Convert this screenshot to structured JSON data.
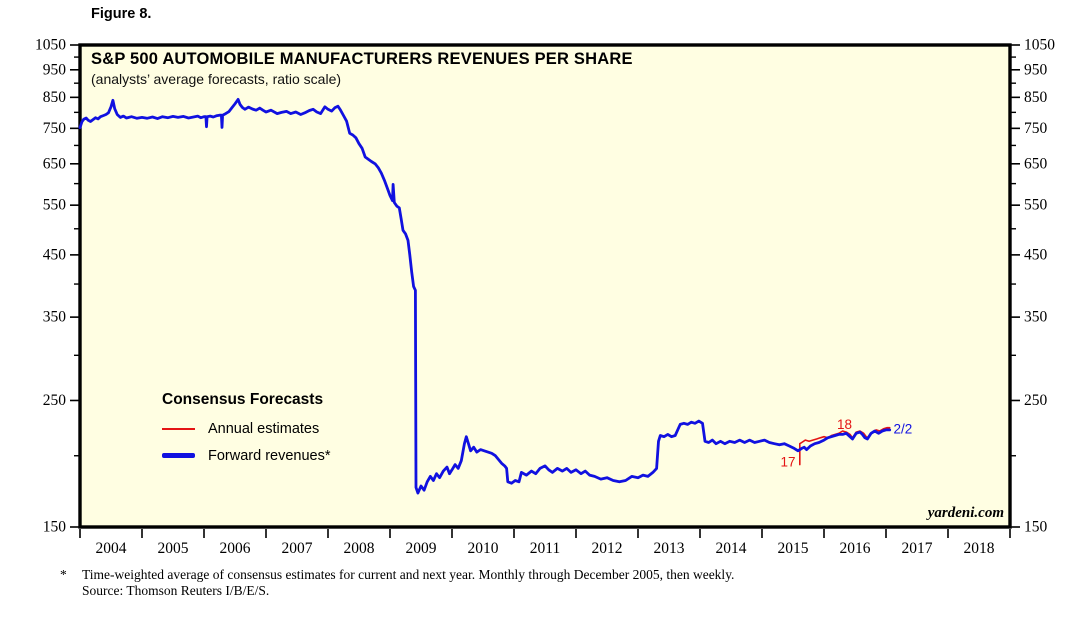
{
  "figure_label": "Figure 8.",
  "chart": {
    "title": "S&P 500 AUTOMOBILE MANUFACTURERS REVENUES PER SHARE",
    "subtitle": "(analysts’ average forecasts, ratio scale)",
    "watermark": "yardeni.com",
    "legend": {
      "heading": "Consensus Forecasts",
      "items": [
        {
          "label": "Annual estimates",
          "color": "#e41414",
          "style": "thin"
        },
        {
          "label": "Forward revenues*",
          "color": "#1111e0",
          "style": "thick"
        }
      ]
    }
  },
  "footnote": {
    "marker": "*",
    "line1": "Time-weighted average of consensus estimates for current and next year. Monthly through December 2005, then weekly.",
    "line2": "Source: Thomson Reuters I/B/E/S."
  },
  "chart_data": {
    "type": "line",
    "title": "S&P 500 AUTOMOBILE MANUFACTURERS REVENUES PER SHARE",
    "subtitle": "(analysts' average forecasts, ratio scale)",
    "grid": false,
    "legend_position": "inside-left-middle",
    "plot_bg": "#fffee2",
    "y_axis": {
      "scale": "log",
      "range": [
        150,
        1050
      ],
      "ticks": [
        150,
        250,
        350,
        450,
        550,
        650,
        750,
        850,
        950,
        1050
      ],
      "minor_ticks": [
        200,
        300,
        400,
        500,
        600,
        700,
        800,
        900,
        1000
      ],
      "sides": [
        "left",
        "right"
      ]
    },
    "x_axis": {
      "range": [
        2004,
        2019
      ],
      "ticks": [
        2004,
        2005,
        2006,
        2007,
        2008,
        2009,
        2010,
        2011,
        2012,
        2013,
        2014,
        2015,
        2016,
        2017,
        2018,
        2019
      ],
      "labels": [
        "2004",
        "2005",
        "2006",
        "2007",
        "2008",
        "2009",
        "2010",
        "2011",
        "2012",
        "2013",
        "2014",
        "2015",
        "2016",
        "2017",
        "2018"
      ]
    },
    "series": [
      {
        "id": "annual-estimates",
        "name": "Annual estimates",
        "color": "#e41414",
        "width": 1.6,
        "points": [
          [
            2015.61,
            193
          ],
          [
            2015.61,
            210
          ],
          [
            2015.64,
            211
          ],
          [
            2015.7,
            213
          ],
          [
            2015.76,
            212
          ],
          [
            2015.82,
            213
          ],
          [
            2015.88,
            214
          ],
          [
            2015.94,
            215
          ],
          [
            2016.0,
            216
          ],
          [
            2016.06,
            215
          ],
          [
            2016.12,
            217
          ],
          [
            2016.18,
            218
          ],
          [
            2016.24,
            219
          ],
          [
            2016.3,
            221
          ],
          [
            2016.36,
            220
          ],
          [
            2016.42,
            218
          ],
          [
            2016.46,
            215
          ],
          [
            2016.52,
            220
          ],
          [
            2016.58,
            221
          ],
          [
            2016.64,
            219
          ],
          [
            2016.68,
            216
          ],
          [
            2016.72,
            215
          ],
          [
            2016.78,
            220
          ],
          [
            2016.84,
            222
          ],
          [
            2016.9,
            221
          ],
          [
            2016.96,
            223
          ],
          [
            2017.02,
            224
          ],
          [
            2017.06,
            224
          ]
        ]
      },
      {
        "id": "forward-revenues",
        "name": "Forward revenues*",
        "color": "#1111e0",
        "width": 2.8,
        "points": [
          [
            2004.0,
            752
          ],
          [
            2004.03,
            770
          ],
          [
            2004.06,
            778
          ],
          [
            2004.1,
            782
          ],
          [
            2004.13,
            775
          ],
          [
            2004.17,
            771
          ],
          [
            2004.21,
            777
          ],
          [
            2004.25,
            783
          ],
          [
            2004.29,
            779
          ],
          [
            2004.33,
            786
          ],
          [
            2004.38,
            790
          ],
          [
            2004.42,
            793
          ],
          [
            2004.46,
            799
          ],
          [
            2004.5,
            818
          ],
          [
            2004.53,
            840
          ],
          [
            2004.56,
            812
          ],
          [
            2004.6,
            793
          ],
          [
            2004.65,
            784
          ],
          [
            2004.7,
            788
          ],
          [
            2004.75,
            782
          ],
          [
            2004.83,
            786
          ],
          [
            2004.92,
            781
          ],
          [
            2005.0,
            784
          ],
          [
            2005.08,
            781
          ],
          [
            2005.17,
            785
          ],
          [
            2005.25,
            780
          ],
          [
            2005.33,
            786
          ],
          [
            2005.42,
            783
          ],
          [
            2005.5,
            787
          ],
          [
            2005.58,
            784
          ],
          [
            2005.67,
            787
          ],
          [
            2005.75,
            782
          ],
          [
            2005.83,
            785
          ],
          [
            2005.9,
            788
          ],
          [
            2005.95,
            783
          ],
          [
            2006.0,
            786
          ],
          [
            2006.03,
            786
          ],
          [
            2006.04,
            755
          ],
          [
            2006.05,
            786
          ],
          [
            2006.1,
            788
          ],
          [
            2006.15,
            785
          ],
          [
            2006.2,
            789
          ],
          [
            2006.25,
            791
          ],
          [
            2006.28,
            791
          ],
          [
            2006.29,
            753
          ],
          [
            2006.3,
            791
          ],
          [
            2006.35,
            796
          ],
          [
            2006.4,
            802
          ],
          [
            2006.45,
            815
          ],
          [
            2006.5,
            828
          ],
          [
            2006.55,
            843
          ],
          [
            2006.58,
            826
          ],
          [
            2006.62,
            816
          ],
          [
            2006.66,
            810
          ],
          [
            2006.72,
            817
          ],
          [
            2006.78,
            811
          ],
          [
            2006.84,
            807
          ],
          [
            2006.9,
            814
          ],
          [
            2006.95,
            807
          ],
          [
            2007.0,
            801
          ],
          [
            2007.08,
            807
          ],
          [
            2007.18,
            796
          ],
          [
            2007.25,
            800
          ],
          [
            2007.33,
            803
          ],
          [
            2007.4,
            796
          ],
          [
            2007.48,
            801
          ],
          [
            2007.56,
            793
          ],
          [
            2007.64,
            800
          ],
          [
            2007.7,
            806
          ],
          [
            2007.76,
            810
          ],
          [
            2007.82,
            801
          ],
          [
            2007.88,
            796
          ],
          [
            2007.95,
            818
          ],
          [
            2008.0,
            810
          ],
          [
            2008.06,
            804
          ],
          [
            2008.11,
            815
          ],
          [
            2008.16,
            820
          ],
          [
            2008.2,
            808
          ],
          [
            2008.25,
            790
          ],
          [
            2008.3,
            772
          ],
          [
            2008.35,
            735
          ],
          [
            2008.4,
            730
          ],
          [
            2008.45,
            722
          ],
          [
            2008.5,
            705
          ],
          [
            2008.55,
            692
          ],
          [
            2008.6,
            668
          ],
          [
            2008.65,
            662
          ],
          [
            2008.7,
            656
          ],
          [
            2008.76,
            650
          ],
          [
            2008.81,
            640
          ],
          [
            2008.86,
            626
          ],
          [
            2008.91,
            608
          ],
          [
            2008.96,
            588
          ],
          [
            2009.0,
            572
          ],
          [
            2009.04,
            560
          ],
          [
            2009.05,
            598
          ],
          [
            2009.07,
            556
          ],
          [
            2009.11,
            548
          ],
          [
            2009.15,
            544
          ],
          [
            2009.18,
            520
          ],
          [
            2009.21,
            497
          ],
          [
            2009.25,
            490
          ],
          [
            2009.29,
            477
          ],
          [
            2009.32,
            450
          ],
          [
            2009.35,
            420
          ],
          [
            2009.38,
            396
          ],
          [
            2009.41,
            390
          ],
          [
            2009.42,
            176
          ],
          [
            2009.45,
            172
          ],
          [
            2009.5,
            177
          ],
          [
            2009.55,
            174
          ],
          [
            2009.6,
            180
          ],
          [
            2009.65,
            184
          ],
          [
            2009.7,
            181
          ],
          [
            2009.75,
            186
          ],
          [
            2009.8,
            183
          ],
          [
            2009.86,
            188
          ],
          [
            2009.92,
            191
          ],
          [
            2009.96,
            186
          ],
          [
            2010.0,
            189
          ],
          [
            2010.05,
            193
          ],
          [
            2010.1,
            190
          ],
          [
            2010.15,
            196
          ],
          [
            2010.2,
            210
          ],
          [
            2010.23,
            216
          ],
          [
            2010.26,
            211
          ],
          [
            2010.3,
            204
          ],
          [
            2010.35,
            207
          ],
          [
            2010.4,
            203
          ],
          [
            2010.46,
            205
          ],
          [
            2010.52,
            204
          ],
          [
            2010.58,
            203
          ],
          [
            2010.64,
            202
          ],
          [
            2010.7,
            200
          ],
          [
            2010.75,
            197
          ],
          [
            2010.8,
            194
          ],
          [
            2010.85,
            192
          ],
          [
            2010.88,
            190
          ],
          [
            2010.9,
            180
          ],
          [
            2010.96,
            179
          ],
          [
            2011.02,
            181
          ],
          [
            2011.08,
            180
          ],
          [
            2011.12,
            187
          ],
          [
            2011.2,
            185
          ],
          [
            2011.28,
            188
          ],
          [
            2011.35,
            186
          ],
          [
            2011.42,
            190
          ],
          [
            2011.5,
            192
          ],
          [
            2011.56,
            189
          ],
          [
            2011.62,
            187
          ],
          [
            2011.7,
            190
          ],
          [
            2011.78,
            188
          ],
          [
            2011.85,
            190
          ],
          [
            2011.92,
            187
          ],
          [
            2012.0,
            189
          ],
          [
            2012.08,
            186
          ],
          [
            2012.15,
            188
          ],
          [
            2012.22,
            185
          ],
          [
            2012.3,
            184
          ],
          [
            2012.4,
            182
          ],
          [
            2012.5,
            183
          ],
          [
            2012.6,
            181
          ],
          [
            2012.7,
            180
          ],
          [
            2012.8,
            181
          ],
          [
            2012.9,
            184
          ],
          [
            2013.0,
            183
          ],
          [
            2013.08,
            185
          ],
          [
            2013.16,
            184
          ],
          [
            2013.24,
            187
          ],
          [
            2013.3,
            190
          ],
          [
            2013.33,
            212
          ],
          [
            2013.36,
            217
          ],
          [
            2013.42,
            216
          ],
          [
            2013.48,
            218
          ],
          [
            2013.54,
            216
          ],
          [
            2013.6,
            217
          ],
          [
            2013.64,
            222
          ],
          [
            2013.68,
            227
          ],
          [
            2013.74,
            228
          ],
          [
            2013.8,
            227
          ],
          [
            2013.86,
            229
          ],
          [
            2013.92,
            228
          ],
          [
            2013.98,
            230
          ],
          [
            2014.04,
            228
          ],
          [
            2014.08,
            212
          ],
          [
            2014.14,
            211
          ],
          [
            2014.2,
            213
          ],
          [
            2014.26,
            210
          ],
          [
            2014.33,
            212
          ],
          [
            2014.4,
            210
          ],
          [
            2014.48,
            212
          ],
          [
            2014.56,
            211
          ],
          [
            2014.64,
            213
          ],
          [
            2014.72,
            211
          ],
          [
            2014.8,
            213
          ],
          [
            2014.88,
            211
          ],
          [
            2014.96,
            212
          ],
          [
            2015.04,
            213
          ],
          [
            2015.12,
            211
          ],
          [
            2015.2,
            210
          ],
          [
            2015.28,
            209
          ],
          [
            2015.36,
            210
          ],
          [
            2015.44,
            208
          ],
          [
            2015.52,
            206
          ],
          [
            2015.58,
            204
          ],
          [
            2015.64,
            206
          ],
          [
            2015.68,
            207
          ],
          [
            2015.72,
            205
          ],
          [
            2015.78,
            208
          ],
          [
            2015.85,
            210
          ],
          [
            2015.92,
            211
          ],
          [
            2016.0,
            213
          ],
          [
            2016.06,
            215
          ],
          [
            2016.12,
            216
          ],
          [
            2016.18,
            217
          ],
          [
            2016.24,
            218
          ],
          [
            2016.3,
            218
          ],
          [
            2016.36,
            219
          ],
          [
            2016.42,
            216
          ],
          [
            2016.46,
            214
          ],
          [
            2016.52,
            219
          ],
          [
            2016.58,
            220
          ],
          [
            2016.62,
            218
          ],
          [
            2016.66,
            215
          ],
          [
            2016.7,
            214
          ],
          [
            2016.76,
            219
          ],
          [
            2016.82,
            221
          ],
          [
            2016.88,
            219
          ],
          [
            2016.94,
            221
          ],
          [
            2017.0,
            222
          ],
          [
            2017.06,
            222
          ]
        ]
      }
    ],
    "annotations": [
      {
        "text": "17",
        "color": "#e41414",
        "year": 2015.42,
        "value": 195,
        "anchor": "middle"
      },
      {
        "text": "18",
        "color": "#e41414",
        "year": 2016.33,
        "value": 227,
        "anchor": "middle"
      },
      {
        "text": "2/2",
        "color": "#1111e0",
        "year": 2017.12,
        "value": 223,
        "anchor": "start"
      }
    ]
  }
}
